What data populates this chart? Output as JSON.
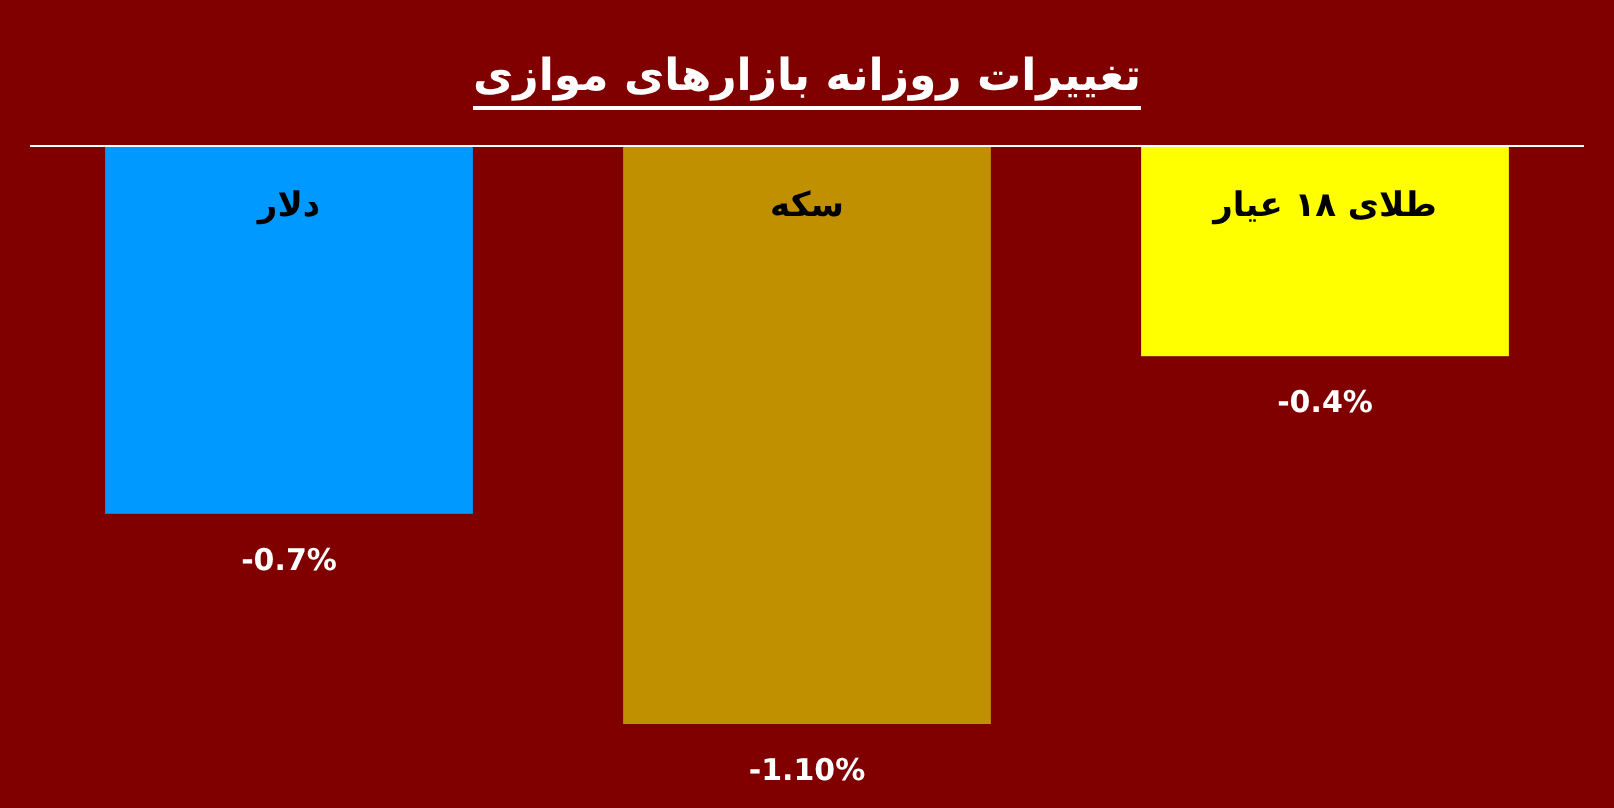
{
  "chart_data": {
    "type": "bar",
    "title": "تغییرات روزانه بازارهای موازی",
    "categories": [
      "دلار",
      "سکه",
      "طلای ۱۸ عیار"
    ],
    "values": [
      -0.7,
      -1.1,
      -0.4
    ],
    "colors": [
      "#0099ff",
      "#c09000",
      "#ffff00"
    ],
    "value_labels": [
      "-0.7%",
      "-1.10%",
      "-0.4%"
    ]
  }
}
